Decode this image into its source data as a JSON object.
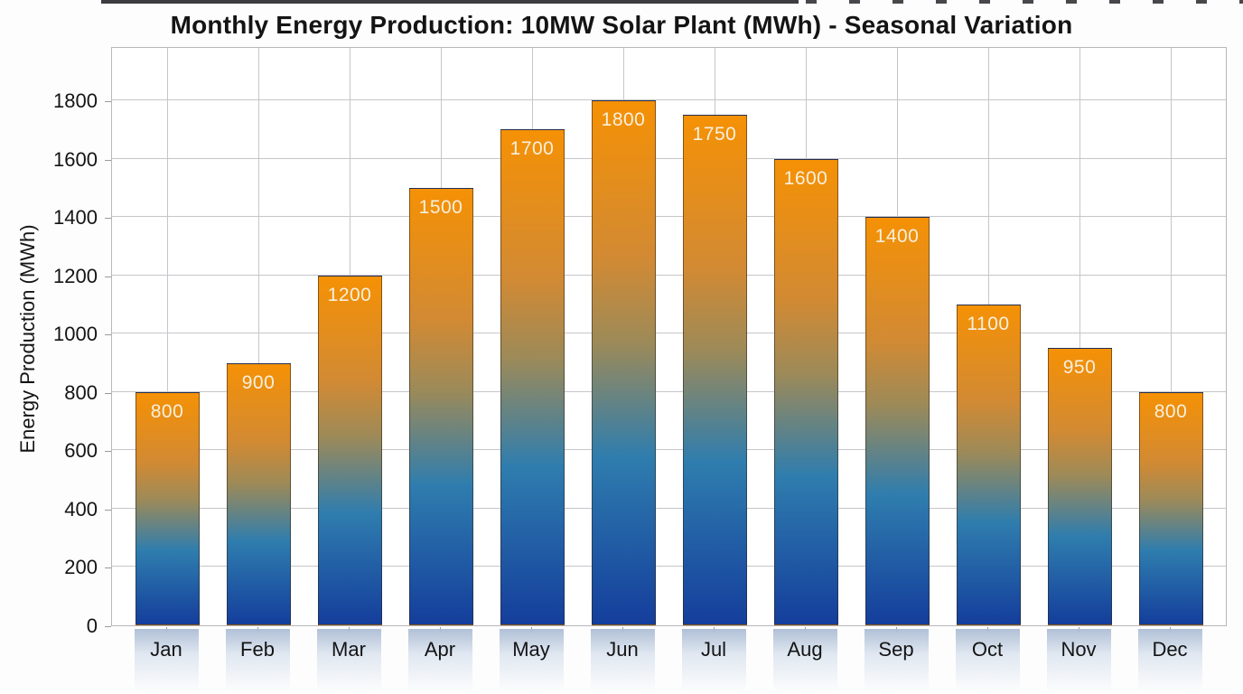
{
  "chart_data": {
    "type": "bar",
    "title": "Monthly Energy Production: 10MW Solar Plant (MWh) - Seasonal Variation",
    "xlabel": "",
    "ylabel": "Energy Production (MWh)",
    "categories": [
      "Jan",
      "Feb",
      "Mar",
      "Apr",
      "May",
      "Jun",
      "Jul",
      "Aug",
      "Sep",
      "Oct",
      "Nov",
      "Dec"
    ],
    "values": [
      800,
      900,
      1200,
      1500,
      1700,
      1800,
      1750,
      1600,
      1400,
      1100,
      950,
      800
    ],
    "bar_labels": [
      "800",
      "900",
      "1200",
      "1500",
      "1700",
      "1800",
      "1750",
      "1600",
      "1400",
      "1100",
      "950",
      "800"
    ],
    "yticks": [
      0,
      200,
      400,
      600,
      800,
      1000,
      1200,
      1400,
      1600,
      1800
    ],
    "ylim": [
      0,
      1986
    ],
    "grid": true,
    "legend": false,
    "bar_gradient_top_to_bottom": [
      "#F59105",
      "#D28A33",
      "#9D8A58",
      "#2F7DAE",
      "#143E9C"
    ],
    "bar_label_color": "#F7F0DE",
    "gridline_color": "#C6C6CA",
    "reflection_color": "#ACBDD4",
    "title_color": "#141414"
  }
}
